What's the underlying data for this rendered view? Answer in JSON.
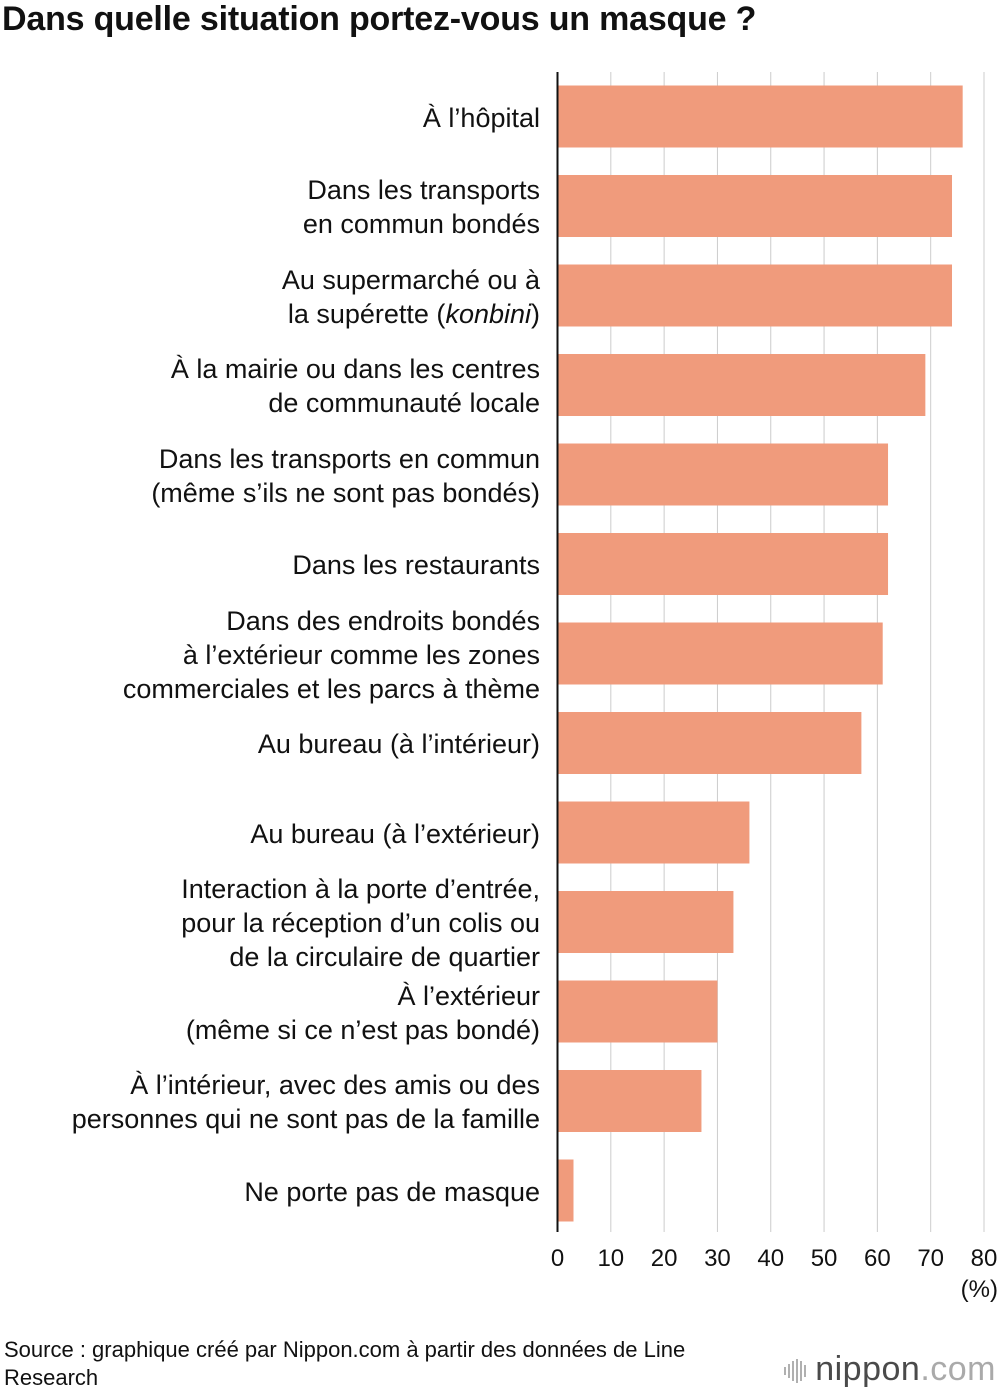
{
  "chart_data": {
    "type": "bar",
    "orientation": "horizontal",
    "title": "Dans quelle situation portez-vous un masque ?",
    "categories": [
      [
        "À l’hôpital"
      ],
      [
        "Dans les transports",
        "en commun bondés"
      ],
      [
        "Au supermarché ou à",
        "la supérette (<i>konbini</i>)"
      ],
      [
        "À la mairie ou dans les centres",
        "de communauté locale"
      ],
      [
        "Dans les transports en commun",
        "(même s’ils ne sont pas bondés)"
      ],
      [
        "Dans les restaurants"
      ],
      [
        "Dans des endroits bondés",
        "à l’extérieur comme les zones",
        "commerciales et les parcs à thème"
      ],
      [
        "Au bureau (à l’intérieur)"
      ],
      [
        "Au bureau (à l’extérieur)"
      ],
      [
        "Interaction à la porte d’entrée,",
        "pour la réception d’un colis ou",
        "de la circulaire de quartier"
      ],
      [
        "À l’extérieur",
        "(même si ce n’est pas bondé)"
      ],
      [
        "À l’intérieur, avec des amis ou des",
        "personnes qui ne sont pas de la famille"
      ],
      [
        "Ne porte pas de masque"
      ]
    ],
    "values": [
      76,
      74,
      74,
      69,
      62,
      62,
      61,
      57,
      36,
      33,
      30,
      27,
      3
    ],
    "xlim": [
      0,
      80
    ],
    "xticks": [
      "0",
      "10",
      "20",
      "30",
      "40",
      "50",
      "60",
      "70",
      "80"
    ],
    "xlabel": "(%)",
    "grid": true,
    "bar_color": "#f09b7c",
    "grid_color": "#cccccc",
    "axis_color": "#111111"
  },
  "source": "Source : graphique créé par Nippon.com à partir des données de Line Research",
  "logo": {
    "text_main": "nippon",
    "text_suffix": ".com"
  }
}
